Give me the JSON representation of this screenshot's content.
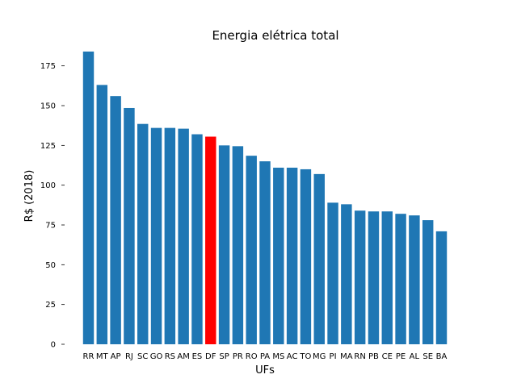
{
  "chart_data": {
    "type": "bar",
    "title": "Energia elétrica total",
    "xlabel": "UFs",
    "ylabel": "R$ (2018)",
    "ylim": [
      0,
      187
    ],
    "yticks": [
      0,
      25,
      50,
      75,
      100,
      125,
      150,
      175
    ],
    "grid": false,
    "categories": [
      "RR",
      "MT",
      "AP",
      "RJ",
      "SC",
      "GO",
      "RS",
      "AM",
      "ES",
      "DF",
      "SP",
      "PR",
      "RO",
      "PA",
      "MS",
      "AC",
      "TO",
      "MG",
      "PI",
      "MA",
      "RN",
      "PB",
      "CE",
      "PE",
      "AL",
      "SE",
      "BA"
    ],
    "values": [
      184,
      163,
      156,
      148.5,
      138.5,
      136,
      136,
      135.5,
      132,
      130.5,
      125,
      124.5,
      118.5,
      115,
      111,
      111,
      110,
      107,
      89,
      88,
      84,
      83.5,
      83.5,
      82,
      81,
      78,
      71
    ],
    "colors": {
      "default": "#1f77b4",
      "highlight": "#ff0000"
    },
    "highlight_category": "DF"
  }
}
